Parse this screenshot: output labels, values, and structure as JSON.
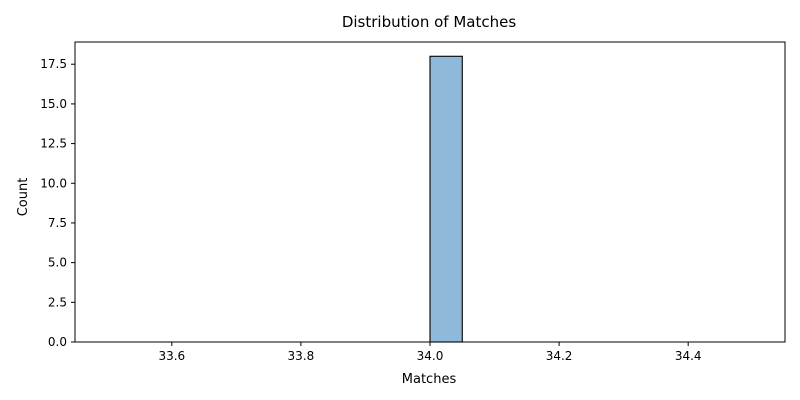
{
  "chart_data": {
    "type": "bar",
    "title": "Distribution of Matches",
    "xlabel": "Matches",
    "ylabel": "Count",
    "xlim": [
      33.45,
      34.55
    ],
    "ylim": [
      0,
      18.9
    ],
    "x_ticks": [
      {
        "value": 33.6,
        "label": "33.6"
      },
      {
        "value": 33.8,
        "label": "33.8"
      },
      {
        "value": 34.0,
        "label": "34.0"
      },
      {
        "value": 34.2,
        "label": "34.2"
      },
      {
        "value": 34.4,
        "label": "34.4"
      }
    ],
    "y_ticks": [
      {
        "value": 0,
        "label": "0.0"
      },
      {
        "value": 2.5,
        "label": "2.5"
      },
      {
        "value": 5,
        "label": "5.0"
      },
      {
        "value": 7.5,
        "label": "7.5"
      },
      {
        "value": 10,
        "label": "10.0"
      },
      {
        "value": 12.5,
        "label": "12.5"
      },
      {
        "value": 15,
        "label": "15.0"
      },
      {
        "value": 17.5,
        "label": "17.5"
      }
    ],
    "bins": {
      "start": 33.5,
      "end": 34.5,
      "width": 0.05,
      "counts": [
        0,
        0,
        0,
        0,
        0,
        0,
        0,
        0,
        0,
        0,
        18,
        0,
        0,
        0,
        0,
        0,
        0,
        0,
        0,
        0
      ]
    },
    "bar_color": "#8fb9da",
    "edge_color": "#000000",
    "grid": false,
    "legend": "none"
  }
}
